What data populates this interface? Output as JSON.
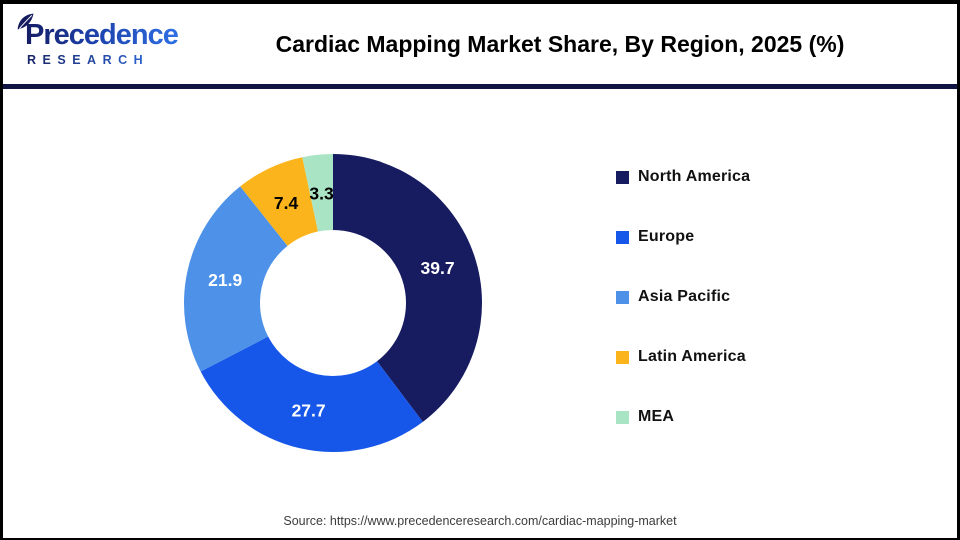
{
  "logo": {
    "name": "Precedence",
    "subtitle": "RESEARCH"
  },
  "header": {
    "title": "Cardiac Mapping Market Share, By Region, 2025 (%)"
  },
  "chart_data": {
    "type": "pie",
    "subtype": "donut",
    "title": "Cardiac Mapping Market Share, By Region, 2025 (%)",
    "unit": "%",
    "start_angle_deg": 0,
    "direction": "clockwise",
    "legend_position": "right",
    "inner_radius_ratio": 0.49,
    "label_radius_ratio": 0.74,
    "segments": [
      {
        "label": "North America",
        "value": 39.7,
        "color": "#171b60",
        "label_color": "#ffffff"
      },
      {
        "label": "Europe",
        "value": 27.7,
        "color": "#1656e8",
        "label_color": "#ffffff"
      },
      {
        "label": "Asia Pacific",
        "value": 21.9,
        "color": "#4d92e8",
        "label_color": "#ffffff"
      },
      {
        "label": "Latin America",
        "value": 7.4,
        "color": "#fbb41b",
        "label_color": "#000000"
      },
      {
        "label": "MEA",
        "value": 3.3,
        "color": "#a9e5c4",
        "label_color": "#000000"
      }
    ]
  },
  "footer": {
    "source": "Source: https://www.precedenceresearch.com/cardiac-mapping-market"
  }
}
